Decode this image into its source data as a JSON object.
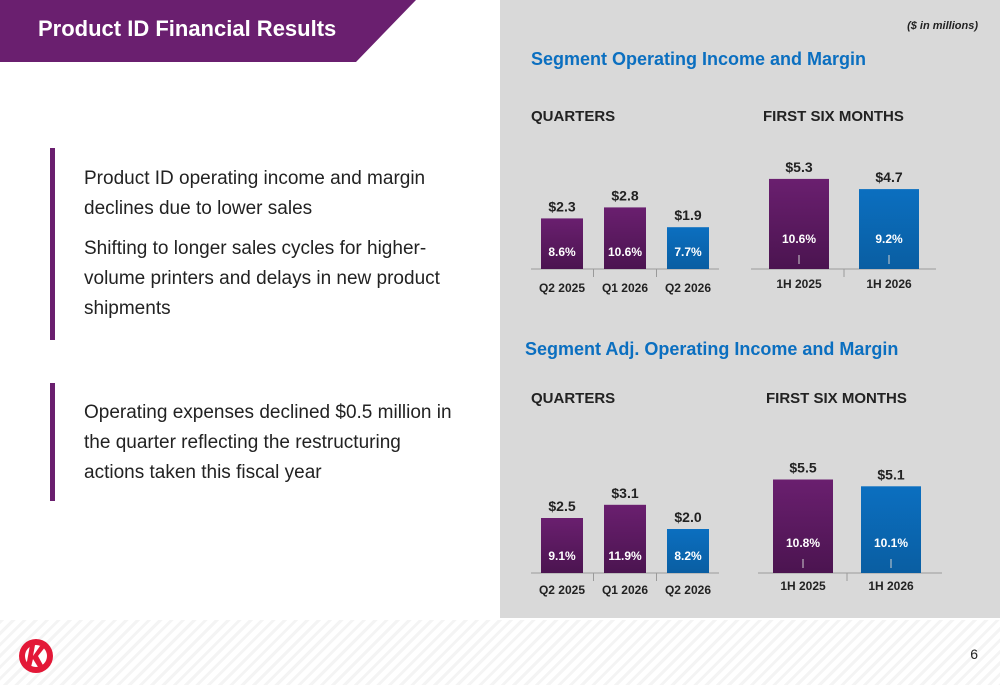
{
  "title": "Product ID Financial Results",
  "units_note": "($ in millions)",
  "page_number": "6",
  "colors": {
    "purple": "#6a1f6f",
    "purple_dark": "#4b1450",
    "blue": "#0b6fc0",
    "blue_dark": "#0a5ea2",
    "section_title": "#0b6fc0",
    "panel_bg": "#d9d9d9"
  },
  "bullets": [
    {
      "paragraphs": [
        "Product ID operating income and margin declines due to lower sales",
        "Shifting to longer sales cycles for higher-volume printers and delays in new product shipments"
      ]
    },
    {
      "paragraphs": [
        "Operating expenses declined $0.5 million in the quarter reflecting the restructuring actions taken this fiscal year"
      ]
    }
  ],
  "chart_data": [
    {
      "type": "bar",
      "section_title": "Segment Operating Income and Margin",
      "title": "QUARTERS",
      "categories": [
        "Q2 2025",
        "Q1 2026",
        "Q2 2026"
      ],
      "values": [
        2.3,
        2.8,
        1.9
      ],
      "value_labels": [
        "$2.3",
        "$2.8",
        "$1.9"
      ],
      "margins": [
        "8.6%",
        "10.6%",
        "7.7%"
      ],
      "bar_colors": [
        "purple",
        "purple",
        "blue"
      ]
    },
    {
      "type": "bar",
      "title": "FIRST SIX MONTHS",
      "categories": [
        "1H 2025",
        "1H 2026"
      ],
      "values": [
        5.3,
        4.7
      ],
      "value_labels": [
        "$5.3",
        "$4.7"
      ],
      "margins": [
        "10.6%",
        "9.2%"
      ],
      "bar_colors": [
        "purple",
        "blue"
      ]
    },
    {
      "type": "bar",
      "section_title": "Segment Adj. Operating Income and Margin",
      "title": "QUARTERS",
      "categories": [
        "Q2 2025",
        "Q1 2026",
        "Q2 2026"
      ],
      "values": [
        2.5,
        3.1,
        2.0
      ],
      "value_labels": [
        "$2.5",
        "$3.1",
        "$2.0"
      ],
      "margins": [
        "9.1%",
        "11.9%",
        "8.2%"
      ],
      "bar_colors": [
        "purple",
        "purple",
        "blue"
      ]
    },
    {
      "type": "bar",
      "title": "FIRST SIX MONTHS",
      "categories": [
        "1H 2025",
        "1H 2026"
      ],
      "values": [
        5.5,
        5.1
      ],
      "value_labels": [
        "$5.5",
        "$5.1"
      ],
      "margins": [
        "10.8%",
        "10.1%"
      ],
      "bar_colors": [
        "purple",
        "blue"
      ]
    }
  ],
  "logo_icon": "company-logo-icon"
}
